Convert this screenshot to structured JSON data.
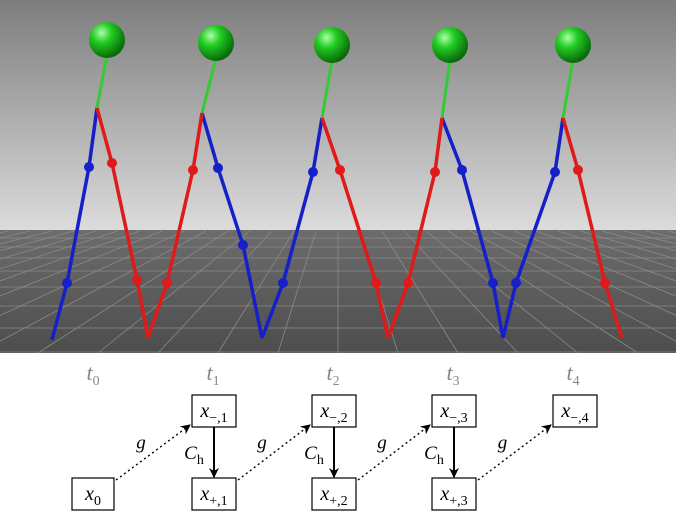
{
  "time_labels": [
    {
      "base": "t",
      "sub": "0"
    },
    {
      "base": "t",
      "sub": "1"
    },
    {
      "base": "t",
      "sub": "2"
    },
    {
      "base": "t",
      "sub": "3"
    },
    {
      "base": "t",
      "sub": "4"
    }
  ],
  "nodes": [
    {
      "base": "x",
      "sub": "0"
    },
    {
      "base": "x",
      "sub": "−,1"
    },
    {
      "base": "x",
      "sub": "+,1"
    },
    {
      "base": "x",
      "sub": "−,2"
    },
    {
      "base": "x",
      "sub": "+,2"
    },
    {
      "base": "x",
      "sub": "−,3"
    },
    {
      "base": "x",
      "sub": "+,3"
    },
    {
      "base": "x",
      "sub": "−,4"
    }
  ],
  "edges": [
    {
      "label": "g"
    },
    {
      "label": "g"
    },
    {
      "label": "g"
    },
    {
      "label": "g"
    },
    {
      "label": {
        "base": "C",
        "sub": "h"
      }
    },
    {
      "label": {
        "base": "C",
        "sub": "h"
      }
    },
    {
      "label": {
        "base": "C",
        "sub": "h"
      }
    }
  ]
}
